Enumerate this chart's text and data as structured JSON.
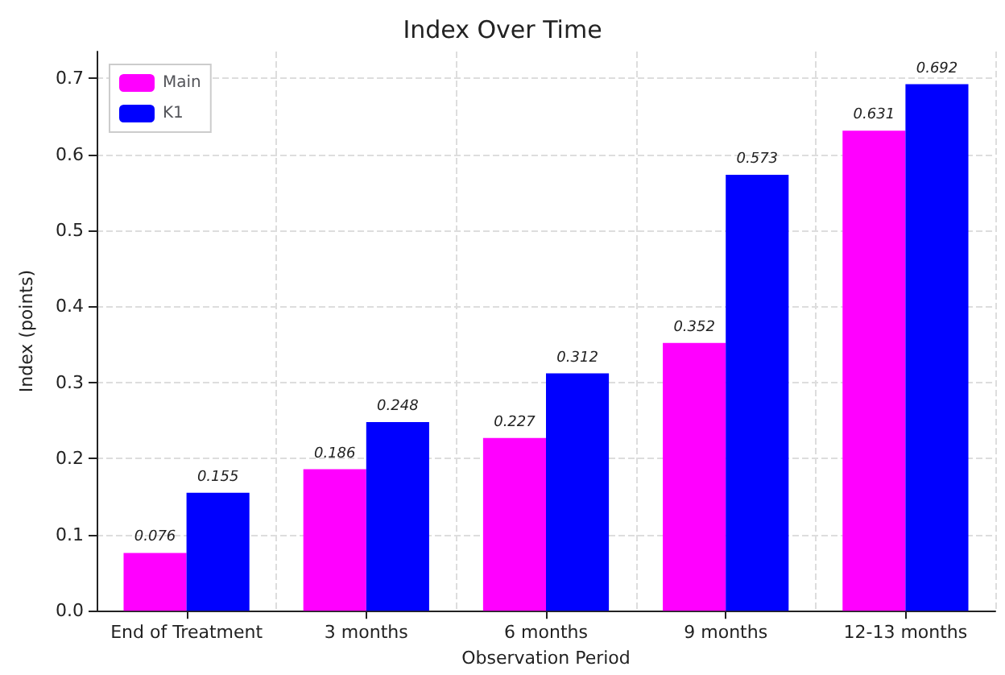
{
  "chart_data": {
    "type": "bar",
    "title": "Index Over Time",
    "xlabel": "Observation Period",
    "ylabel": "Index (points)",
    "categories": [
      "End of Treatment",
      "3 months",
      "6 months",
      "9 months",
      "12-13 months"
    ],
    "series": [
      {
        "name": "Main",
        "color": "#ff00ff",
        "values": [
          0.076,
          0.186,
          0.227,
          0.352,
          0.631
        ]
      },
      {
        "name": "K1",
        "color": "#0000ff",
        "values": [
          0.155,
          0.248,
          0.312,
          0.573,
          0.692
        ]
      }
    ],
    "ylim": [
      0,
      0.735
    ],
    "yticks": [
      {
        "value": 0,
        "label": "0.0"
      },
      0.1,
      0.2,
      0.3,
      0.4,
      0.5,
      0.6,
      0.7
    ],
    "data_labels": true,
    "grid": true,
    "legend": "top left"
  }
}
